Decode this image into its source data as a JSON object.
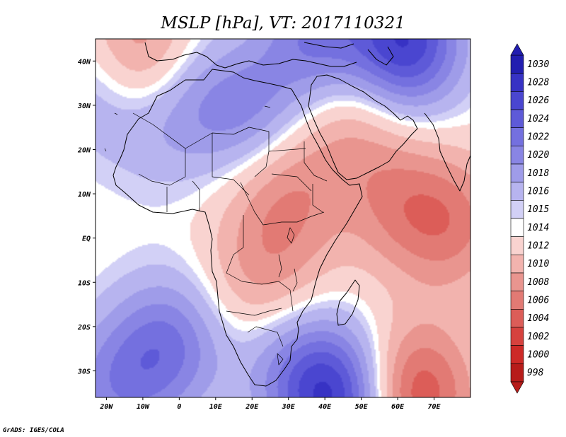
{
  "chart_data": {
    "type": "contour-map",
    "title": "MSLP [hPa], VT: 2017110321",
    "variable": "MSLP",
    "units": "hPa",
    "valid_time": "2017110321",
    "xlim": [
      -23,
      80
    ],
    "ylim": [
      -36,
      45
    ],
    "x_ticks": [
      {
        "value": -20,
        "label": "20W"
      },
      {
        "value": -10,
        "label": "10W"
      },
      {
        "value": 0,
        "label": "0"
      },
      {
        "value": 10,
        "label": "10E"
      },
      {
        "value": 20,
        "label": "20E"
      },
      {
        "value": 30,
        "label": "30E"
      },
      {
        "value": 40,
        "label": "40E"
      },
      {
        "value": 50,
        "label": "50E"
      },
      {
        "value": 60,
        "label": "60E"
      },
      {
        "value": 70,
        "label": "70E"
      }
    ],
    "y_ticks": [
      {
        "value": 40,
        "label": "40N"
      },
      {
        "value": 30,
        "label": "30N"
      },
      {
        "value": 20,
        "label": "20N"
      },
      {
        "value": 10,
        "label": "10N"
      },
      {
        "value": 0,
        "label": "EQ"
      },
      {
        "value": -10,
        "label": "10S"
      },
      {
        "value": -20,
        "label": "20S"
      },
      {
        "value": -30,
        "label": "30S"
      }
    ],
    "colorbar": {
      "levels": [
        "1030",
        "1028",
        "1026",
        "1024",
        "1022",
        "1020",
        "1018",
        "1016",
        "1015",
        "1014",
        "1012",
        "1010",
        "1008",
        "1006",
        "1004",
        "1002",
        "1000",
        "998"
      ],
      "colors": [
        "#221eb0",
        "#3732c4",
        "#4a46d0",
        "#5e5ad8",
        "#7470df",
        "#8985e4",
        "#9f9ce9",
        "#b7b4ef",
        "#d2d0f6",
        "#ffffff",
        "#f9d3d0",
        "#f2b3ae",
        "#e9958f",
        "#e27a74",
        "#dc5d58",
        "#d6423e",
        "#cd2a27",
        "#b71c1a"
      ]
    },
    "fields": {
      "base_value": 1014,
      "pressure_centers": [
        {
          "type": "high",
          "lon": 62,
          "lat": 44,
          "value": 1028
        },
        {
          "type": "high",
          "lon": 38,
          "lat": 45,
          "value": 1022
        },
        {
          "type": "high",
          "lon": 20,
          "lat": 28,
          "value": 1020
        },
        {
          "type": "high",
          "lon": 3,
          "lat": 31,
          "value": 1018
        },
        {
          "type": "high",
          "lon": -21,
          "lat": 35,
          "value": 1019
        },
        {
          "type": "high",
          "lon": -8,
          "lat": 24,
          "value": 1016
        },
        {
          "type": "high",
          "lon": -3,
          "lat": -24,
          "value": 1022
        },
        {
          "type": "high",
          "lon": 42,
          "lat": -36,
          "value": 1028
        },
        {
          "type": "high",
          "lon": 28,
          "lat": -26,
          "value": 1018
        },
        {
          "type": "high",
          "lon": -18,
          "lat": -34,
          "value": 1020
        },
        {
          "type": "low",
          "lon": -12,
          "lat": 41,
          "value": 1006
        },
        {
          "type": "low",
          "lon": 65,
          "lat": -35,
          "value": 1004
        },
        {
          "type": "low",
          "lon": 75,
          "lat": 3,
          "value": 1008
        },
        {
          "type": "low",
          "lon": 60,
          "lat": 8,
          "value": 1009
        },
        {
          "type": "low",
          "lon": 48,
          "lat": 28,
          "value": 1010
        },
        {
          "type": "low",
          "lon": 25,
          "lat": 10,
          "value": 1011
        },
        {
          "type": "low",
          "lon": 33,
          "lat": 14,
          "value": 1011
        },
        {
          "type": "low",
          "lon": 28,
          "lat": -5,
          "value": 1011
        },
        {
          "type": "low",
          "lon": 20,
          "lat": -14,
          "value": 1011
        }
      ]
    }
  },
  "footer": {
    "credit": "GrADS: IGES/COLA"
  },
  "map": {
    "continent": "Africa",
    "features": [
      "coastlines",
      "country-borders"
    ]
  }
}
